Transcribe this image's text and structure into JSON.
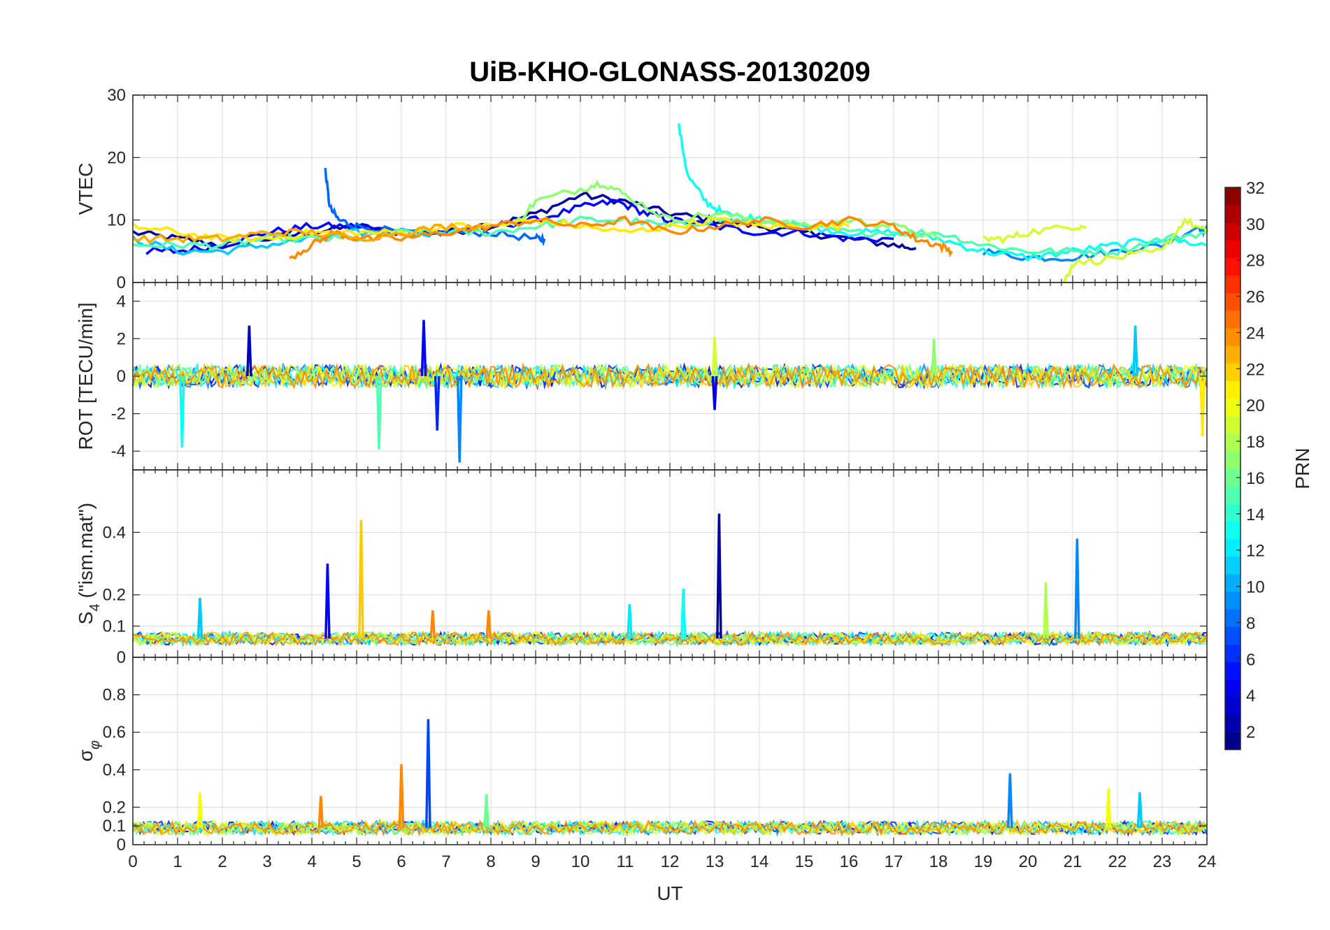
{
  "chart_data": {
    "type": "line",
    "title": "UiB-KHO-GLONASS-20130209",
    "xlabel": "UT",
    "xlim": [
      0,
      24
    ],
    "xticks": [
      0,
      1,
      2,
      3,
      4,
      5,
      6,
      7,
      8,
      9,
      10,
      11,
      12,
      13,
      14,
      15,
      16,
      17,
      18,
      19,
      20,
      21,
      22,
      23,
      24
    ],
    "grid": true,
    "panels": [
      {
        "id": "vtec",
        "ylabel": "VTEC",
        "ylim": [
          0,
          30
        ],
        "yticks": [
          0,
          10,
          20,
          30
        ],
        "series": [
          {
            "prn": 2,
            "x": [
              0,
              1,
              2,
              3,
              4,
              5,
              6,
              7,
              8,
              9,
              10,
              11,
              12,
              13,
              14,
              15,
              16,
              17,
              17.5
            ],
            "y": [
              8,
              7,
              6,
              7,
              8,
              9,
              8,
              8,
              9,
              11,
              14,
              13,
              11,
              10,
              9,
              8,
              7,
              6,
              5.5
            ]
          },
          {
            "prn": 5,
            "x": [
              0.3,
              1,
              2,
              3,
              4,
              5,
              6,
              7,
              8,
              9,
              10,
              10.8,
              11.5,
              12,
              13,
              14,
              15,
              16,
              17
            ],
            "y": [
              5,
              5,
              6,
              8,
              9,
              9,
              8,
              8,
              9,
              10,
              12,
              13,
              11,
              10,
              9,
              8,
              8,
              7,
              7
            ]
          },
          {
            "prn": 8,
            "x": [
              4.3,
              4.4,
              4.6,
              5,
              6,
              7,
              8,
              9,
              9.2
            ],
            "y": [
              18,
              12,
              10,
              9,
              8,
              8,
              8,
              7,
              7
            ]
          },
          {
            "prn": 9,
            "x": [
              19,
              20,
              21,
              22,
              23,
              23.8,
              24
            ],
            "y": [
              5,
              4,
              4,
              5,
              6,
              9,
              8
            ]
          },
          {
            "prn": 11,
            "x": [
              0,
              1,
              2,
              3,
              4,
              5,
              6,
              7
            ],
            "y": [
              7,
              5,
              5,
              6,
              7,
              8,
              8,
              8
            ]
          },
          {
            "prn": 13,
            "x": [
              12.2,
              12.4,
              12.8,
              13.2,
              14,
              15,
              16,
              17,
              18,
              19,
              20,
              21,
              22,
              23,
              24
            ],
            "y": [
              25,
              17,
              13,
              11,
              10,
              9,
              8,
              8,
              7,
              5,
              4,
              5,
              6,
              7,
              6
            ]
          },
          {
            "prn": 15,
            "x": [
              0,
              1,
              2,
              3,
              4,
              5,
              6,
              7,
              8,
              9,
              10,
              11,
              12,
              13,
              14,
              15,
              16,
              17,
              18,
              19,
              20,
              21,
              22,
              23,
              24
            ],
            "y": [
              6,
              6,
              6,
              7,
              7,
              7,
              8,
              8,
              8,
              9,
              10,
              10,
              9,
              10,
              10,
              9,
              8,
              8,
              8,
              6,
              5,
              5,
              5,
              7,
              8
            ]
          },
          {
            "prn": 17,
            "x": [
              8.5,
              9,
              10,
              10.5,
              11,
              12,
              13,
              14,
              15,
              16,
              17,
              18
            ],
            "y": [
              9,
              13,
              15,
              16,
              14,
              10,
              11,
              10,
              9,
              10,
              9,
              7
            ]
          },
          {
            "prn": 19,
            "x": [
              19,
              19.5,
              20,
              21,
              21.3
            ],
            "y": [
              7,
              7,
              8,
              9,
              9
            ]
          },
          {
            "prn": 19,
            "x": [
              20.8,
              21,
              22,
              23,
              23.5,
              24
            ],
            "y": [
              0,
              3,
              4,
              5,
              10,
              8
            ]
          },
          {
            "prn": 21,
            "x": [
              0,
              1,
              2,
              3,
              4,
              5,
              6,
              7,
              8,
              9,
              10,
              11,
              12,
              13,
              14,
              15,
              16
            ],
            "y": [
              9,
              8,
              7,
              7,
              8,
              8,
              8,
              9,
              9,
              10,
              9,
              8,
              9,
              10,
              9,
              9,
              9
            ]
          },
          {
            "prn": 24,
            "x": [
              3.5,
              4,
              4.5,
              5,
              6,
              7,
              8,
              9,
              10,
              11,
              12,
              13,
              14,
              15,
              16,
              17,
              17.5,
              18,
              18.3
            ],
            "y": [
              4,
              6,
              8,
              7,
              7,
              8,
              9,
              10,
              9,
              10,
              8,
              9,
              10,
              9,
              10,
              9,
              7,
              6,
              5
            ]
          },
          {
            "prn": 23,
            "x": [
              0,
              1,
              2,
              3,
              4,
              5,
              6,
              7,
              8
            ],
            "y": [
              7,
              7,
              7,
              8,
              8,
              7,
              8,
              9,
              9
            ]
          }
        ]
      },
      {
        "id": "rot",
        "ylabel": "ROT [TECU/min]",
        "ylim": [
          -5,
          5
        ],
        "yticks": [
          -4,
          -2,
          0,
          2,
          4
        ],
        "spikes": [
          {
            "prn": 13,
            "x": 1.1,
            "y": -3.8
          },
          {
            "prn": 3,
            "x": 2.6,
            "y": 2.7
          },
          {
            "prn": 15,
            "x": 5.5,
            "y": -3.9
          },
          {
            "prn": 5,
            "x": 6.5,
            "y": 3.0
          },
          {
            "prn": 6,
            "x": 6.8,
            "y": -2.9
          },
          {
            "prn": 9,
            "x": 7.3,
            "y": -4.6
          },
          {
            "prn": 4,
            "x": 13.0,
            "y": -1.8
          },
          {
            "prn": 19,
            "x": 13.0,
            "y": 2.1
          },
          {
            "prn": 17,
            "x": 17.9,
            "y": 2.0
          },
          {
            "prn": 11,
            "x": 22.4,
            "y": 2.7
          },
          {
            "prn": 21,
            "x": 23.9,
            "y": -3.2
          }
        ]
      },
      {
        "id": "s4",
        "ylabel": "S4 (\"ism.mat\")",
        "ylim": [
          0,
          0.6
        ],
        "yticks": [
          0,
          0.1,
          0.2,
          0.4
        ],
        "spikes": [
          {
            "prn": 11,
            "x": 1.5,
            "y": 0.19
          },
          {
            "prn": 5,
            "x": 4.35,
            "y": 0.3
          },
          {
            "prn": 22,
            "x": 5.1,
            "y": 0.44
          },
          {
            "prn": 24,
            "x": 6.7,
            "y": 0.15
          },
          {
            "prn": 24,
            "x": 7.95,
            "y": 0.15
          },
          {
            "prn": 12,
            "x": 11.1,
            "y": 0.17
          },
          {
            "prn": 13,
            "x": 12.3,
            "y": 0.22
          },
          {
            "prn": 2,
            "x": 13.1,
            "y": 0.46
          },
          {
            "prn": 18,
            "x": 20.4,
            "y": 0.24
          },
          {
            "prn": 9,
            "x": 21.1,
            "y": 0.38
          }
        ]
      },
      {
        "id": "sigma",
        "ylabel": "σφ",
        "ylim": [
          0,
          1
        ],
        "yticks": [
          0,
          0.1,
          0.2,
          0.4,
          0.6,
          0.8
        ],
        "spikes": [
          {
            "prn": 20,
            "x": 1.5,
            "y": 0.28
          },
          {
            "prn": 24,
            "x": 4.2,
            "y": 0.26
          },
          {
            "prn": 24,
            "x": 6.0,
            "y": 0.43
          },
          {
            "prn": 7,
            "x": 6.6,
            "y": 0.67
          },
          {
            "prn": 16,
            "x": 7.9,
            "y": 0.27
          },
          {
            "prn": 9,
            "x": 19.6,
            "y": 0.38
          },
          {
            "prn": 20,
            "x": 21.8,
            "y": 0.3
          },
          {
            "prn": 11,
            "x": 22.5,
            "y": 0.28
          }
        ]
      }
    ],
    "colorbar": {
      "label": "PRN",
      "range": [
        1,
        32
      ],
      "ticks": [
        2,
        4,
        6,
        8,
        10,
        12,
        14,
        16,
        18,
        20,
        22,
        24,
        26,
        28,
        30,
        32
      ],
      "colormap": "jet"
    }
  }
}
